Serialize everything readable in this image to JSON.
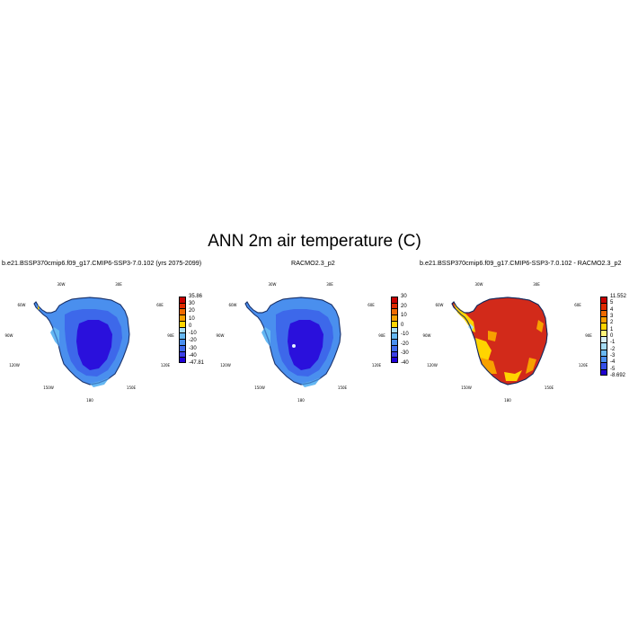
{
  "title": "ANN 2m air temperature (C)",
  "panels": [
    {
      "title": "b.e21.BSSP370cmip6.f09_g17.CMIP6-SSP3-7.0.102 (yrs 2075-2099)",
      "scale": "abs",
      "lon_labels": [
        "30W",
        "30E",
        "60W",
        "60E",
        "90W",
        "90E",
        "120W",
        "120E",
        "150W",
        "150E",
        "180"
      ],
      "colorbar": {
        "colors": [
          "#1f00d8",
          "#3b3fe6",
          "#3d68ea",
          "#4a8fee",
          "#64b7f2",
          "#a6dcf4",
          "#ffd400",
          "#f7a000",
          "#ee6a00",
          "#df2a00",
          "#c80000"
        ],
        "labels": [
          "35.86",
          "30",
          "20",
          "10",
          "0",
          "-10",
          "-20",
          "-30",
          "-40",
          "-47.81"
        ]
      }
    },
    {
      "title": "RACMO2.3_p2",
      "scale": "abs",
      "lon_labels": [
        "30W",
        "30E",
        "60W",
        "60E",
        "90W",
        "90E",
        "120W",
        "120E",
        "150W",
        "150E",
        "180"
      ],
      "colorbar": {
        "colors": [
          "#1f00d8",
          "#3b3fe6",
          "#3d68ea",
          "#4a8fee",
          "#64b7f2",
          "#a6dcf4",
          "#ffd400",
          "#f7a000",
          "#ee6a00",
          "#df2a00",
          "#c80000"
        ],
        "labels": [
          "30",
          "20",
          "10",
          "0",
          "-10",
          "-20",
          "-30",
          "-40"
        ]
      }
    },
    {
      "title": "b.e21.BSSP370cmip6.f09_g17.CMIP6-SSP3-7.0.102 - RACMO2.3_p2",
      "scale": "diff",
      "lon_labels": [
        "30W",
        "30E",
        "60W",
        "60E",
        "90W",
        "90E",
        "120W",
        "120E",
        "150W",
        "150E",
        "180"
      ],
      "colorbar": {
        "colors": [
          "#2000d0",
          "#3550e8",
          "#4a8ef0",
          "#6ab8f2",
          "#a6dcf4",
          "#d6eef6",
          "#fff57a",
          "#ffd400",
          "#f7a000",
          "#ee6a00",
          "#df2a00",
          "#c80000"
        ],
        "labels": [
          "11.552",
          "5",
          "4",
          "3",
          "2",
          "1",
          "0",
          "-1",
          "-2",
          "-3",
          "-4",
          "-5",
          "-8.692"
        ]
      }
    }
  ]
}
